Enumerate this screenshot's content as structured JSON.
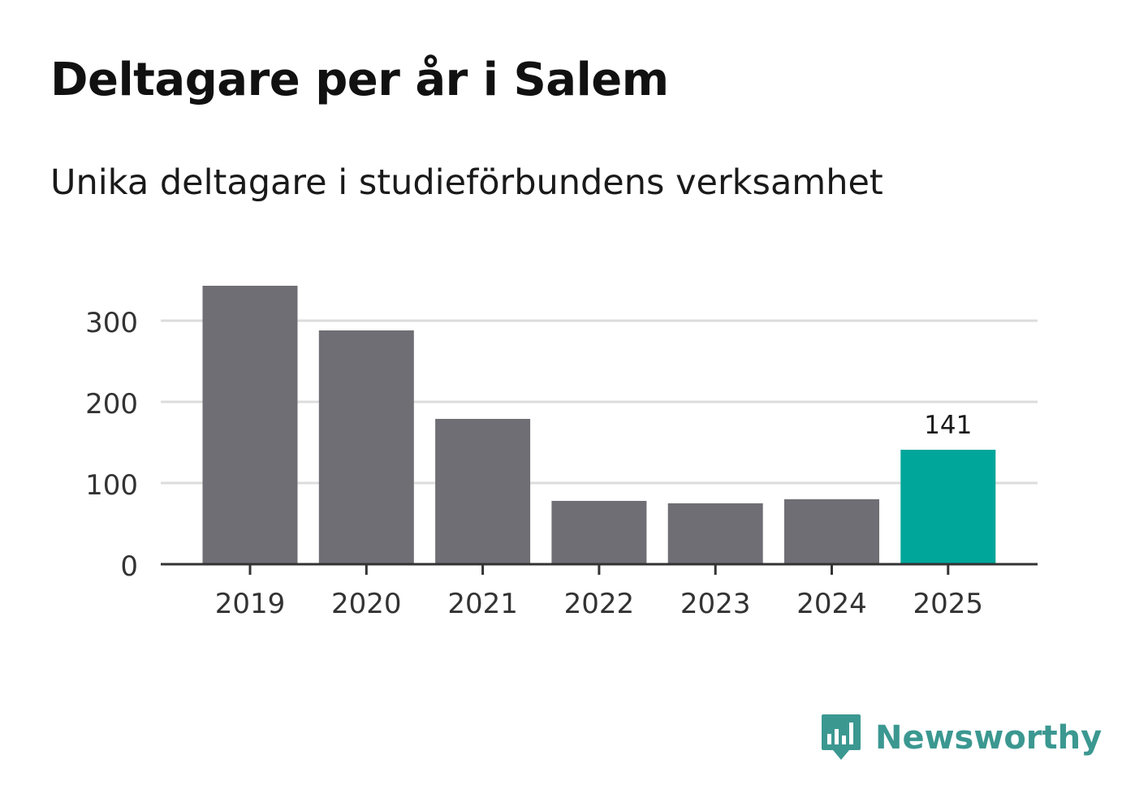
{
  "chart_data": {
    "type": "bar",
    "title": "Deltagare per år i Salem",
    "subtitle": "Unika deltagare i studieförbundens verksamhet",
    "categories": [
      "2019",
      "2020",
      "2021",
      "2022",
      "2023",
      "2024",
      "2025"
    ],
    "values": [
      343,
      288,
      179,
      78,
      75,
      80,
      141
    ],
    "highlight_index": 6,
    "highlight_label": "141",
    "yticks": [
      0,
      100,
      200,
      300
    ],
    "ylim": [
      0,
      360
    ],
    "grid": true,
    "colors": {
      "bar": "#6f6e74",
      "highlight": "#00a69a",
      "grid": "#dcdcdc",
      "axis": "#333333"
    }
  },
  "brand": {
    "name": "Newsworthy",
    "icon": "newsworthy-logo-icon",
    "color": "#3b9891"
  }
}
